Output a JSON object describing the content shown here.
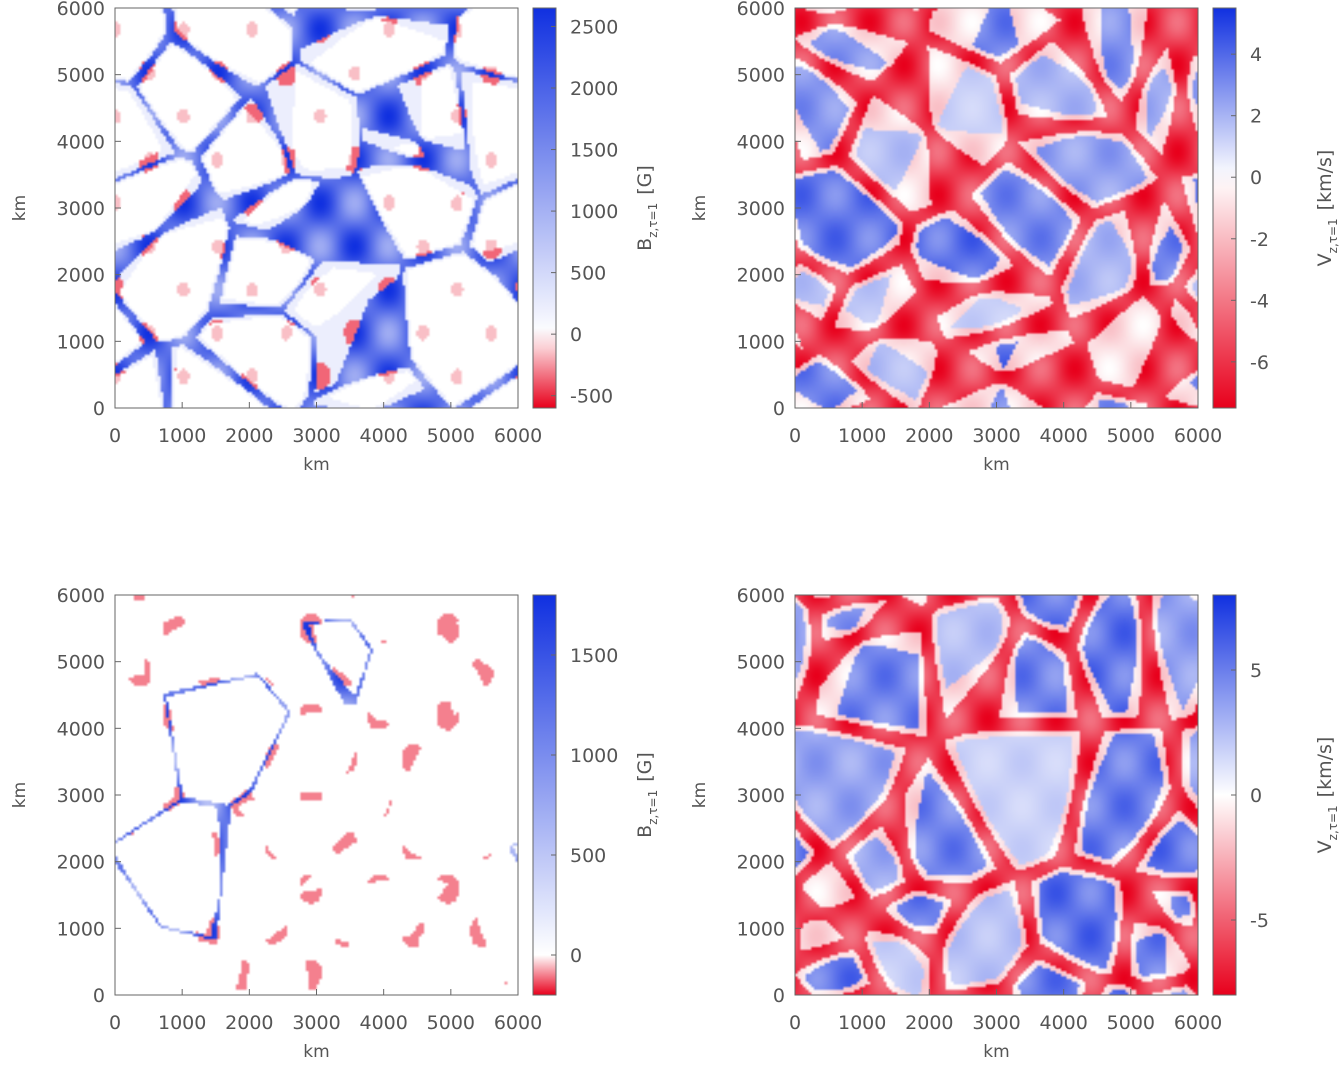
{
  "chart_data": [
    {
      "type": "heatmap",
      "xlabel": "km",
      "ylabel": "km",
      "xlim": [
        0,
        6000
      ],
      "ylim": [
        0,
        6000
      ],
      "x_ticks": [
        "0",
        "1000",
        "2000",
        "3000",
        "4000",
        "5000",
        "6000"
      ],
      "y_ticks": [
        "0",
        "1000",
        "2000",
        "3000",
        "4000",
        "5000",
        "6000"
      ],
      "colorbar": {
        "label_main": "B",
        "label_sub": "z,τ=1",
        "label_unit": "[G]",
        "range": [
          -600,
          2650
        ],
        "ticks": [
          -500,
          0,
          500,
          1000,
          1500,
          2000,
          2500
        ],
        "tick_labels": [
          "-500",
          "0",
          "500",
          "1000",
          "1500",
          "2000",
          "2500"
        ],
        "colors": {
          "negative": "#e8001c",
          "zero": "#ffffff",
          "positive": "#1030e0"
        }
      },
      "field": {
        "pattern": "magnetic-strong",
        "seed": 11
      }
    },
    {
      "type": "heatmap",
      "xlabel": "km",
      "ylabel": "km",
      "xlim": [
        0,
        6000
      ],
      "ylim": [
        0,
        6000
      ],
      "x_ticks": [
        "0",
        "1000",
        "2000",
        "3000",
        "4000",
        "5000",
        "6000"
      ],
      "y_ticks": [
        "0",
        "1000",
        "2000",
        "3000",
        "4000",
        "5000",
        "6000"
      ],
      "colorbar": {
        "label_main": "V",
        "label_sub": "z,τ=1",
        "label_unit": "[km/s]",
        "range": [
          -7.5,
          5.5
        ],
        "ticks": [
          -6,
          -4,
          -2,
          0,
          2,
          4
        ],
        "tick_labels": [
          "-6",
          "-4",
          "-2",
          "0",
          "2",
          "4"
        ],
        "colors": {
          "negative": "#e8001c",
          "zero": "#ffffff",
          "positive": "#1030e0"
        }
      },
      "field": {
        "pattern": "velocity",
        "seed": 23
      }
    },
    {
      "type": "heatmap",
      "xlabel": "km",
      "ylabel": "km",
      "xlim": [
        0,
        6000
      ],
      "ylim": [
        0,
        6000
      ],
      "x_ticks": [
        "0",
        "1000",
        "2000",
        "3000",
        "4000",
        "5000",
        "6000"
      ],
      "y_ticks": [
        "0",
        "1000",
        "2000",
        "3000",
        "4000",
        "5000",
        "6000"
      ],
      "colorbar": {
        "label_main": "B",
        "label_sub": "z,τ=1",
        "label_unit": "[G]",
        "range": [
          -200,
          1800
        ],
        "ticks": [
          0,
          500,
          1000,
          1500
        ],
        "tick_labels": [
          "0",
          "500",
          "1000",
          "1500"
        ],
        "colors": {
          "negative": "#e8001c",
          "zero": "#ffffff",
          "positive": "#1030e0"
        }
      },
      "field": {
        "pattern": "magnetic-weak",
        "seed": 37
      }
    },
    {
      "type": "heatmap",
      "xlabel": "km",
      "ylabel": "km",
      "xlim": [
        0,
        6000
      ],
      "ylim": [
        0,
        6000
      ],
      "x_ticks": [
        "0",
        "1000",
        "2000",
        "3000",
        "4000",
        "5000",
        "6000"
      ],
      "y_ticks": [
        "0",
        "1000",
        "2000",
        "3000",
        "4000",
        "5000",
        "6000"
      ],
      "colorbar": {
        "label_main": "V",
        "label_sub": "z,τ=1",
        "label_unit": "[km/s]",
        "range": [
          -8,
          8
        ],
        "ticks": [
          -5,
          0,
          5
        ],
        "tick_labels": [
          "-5",
          "0",
          "5"
        ],
        "colors": {
          "negative": "#e8001c",
          "zero": "#ffffff",
          "positive": "#1030e0"
        }
      },
      "field": {
        "pattern": "velocity",
        "seed": 53
      }
    }
  ]
}
